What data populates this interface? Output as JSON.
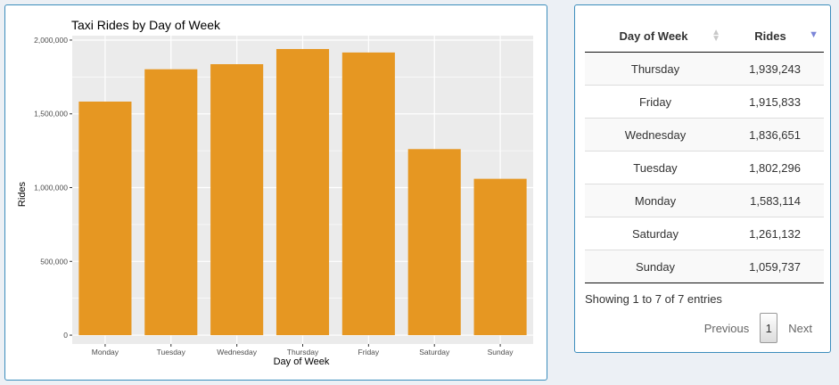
{
  "chart_data": {
    "type": "bar",
    "title": "Taxi Rides by Day of Week",
    "xlabel": "Day of Week",
    "ylabel": "Rides",
    "categories": [
      "Monday",
      "Tuesday",
      "Wednesday",
      "Thursday",
      "Friday",
      "Saturday",
      "Sunday"
    ],
    "values": [
      1583114,
      1802296,
      1836651,
      1939243,
      1915833,
      1261132,
      1059737
    ],
    "ylim": [
      -60000,
      2030000
    ],
    "yticks": [
      0,
      500000,
      1000000,
      1500000,
      2000000
    ],
    "ytick_labels": [
      "0",
      "500,000",
      "1,000,000",
      "1,500,000",
      "2,000,000"
    ],
    "bar_color": "#e69722",
    "panel_background": "#ebebeb",
    "grid": true
  },
  "table": {
    "columns": [
      {
        "label": "Day of Week",
        "sort": "none"
      },
      {
        "label": "Rides",
        "sort": "descending"
      }
    ],
    "rows": [
      {
        "day": "Thursday",
        "rides": "1,939,243"
      },
      {
        "day": "Friday",
        "rides": "1,915,833"
      },
      {
        "day": "Wednesday",
        "rides": "1,836,651"
      },
      {
        "day": "Tuesday",
        "rides": "1,802,296"
      },
      {
        "day": "Monday",
        "rides": "1,583,114"
      },
      {
        "day": "Saturday",
        "rides": "1,261,132"
      },
      {
        "day": "Sunday",
        "rides": "1,059,737"
      }
    ],
    "info": "Showing 1 to 7 of 7 entries",
    "pagination": {
      "previous": "Previous",
      "current": "1",
      "next": "Next"
    }
  },
  "colors": {
    "accent_border": "#3c8dbc",
    "sort_active": "#7c86d8"
  }
}
